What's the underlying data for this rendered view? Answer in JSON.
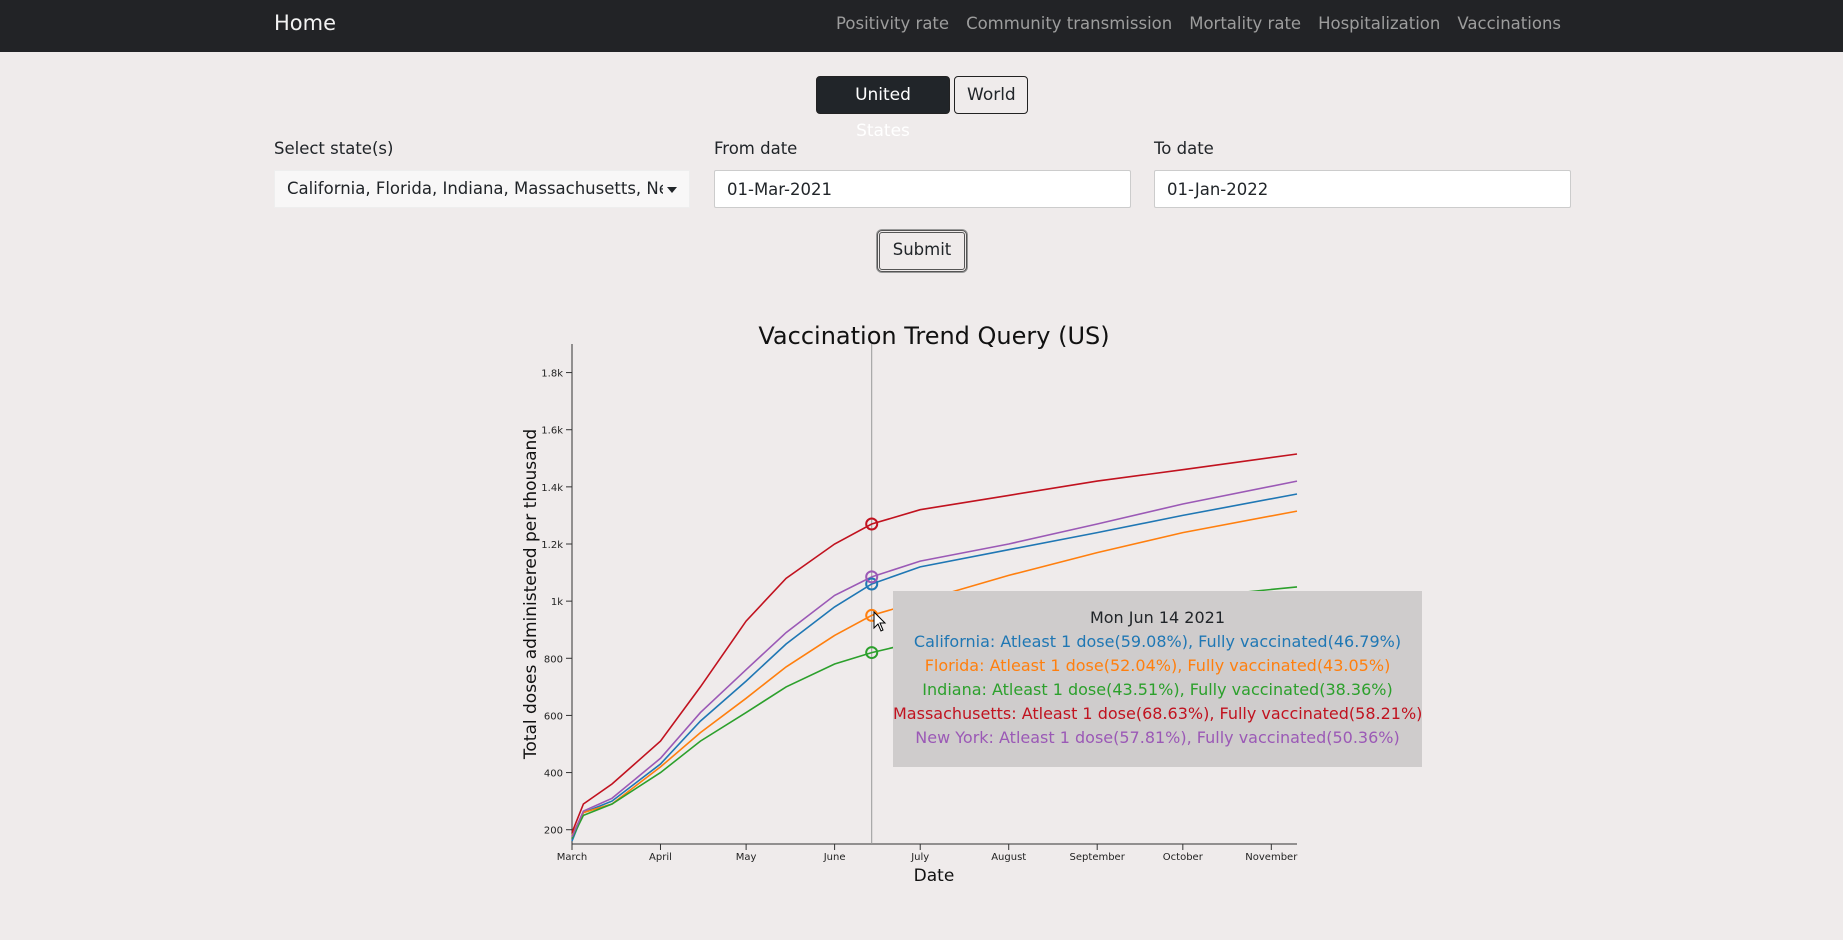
{
  "navbar": {
    "brand": "Home",
    "links": [
      "Positivity rate",
      "Community transmission",
      "Mortality rate",
      "Hospitalization",
      "Vaccinations"
    ]
  },
  "region_toggle": {
    "active": "United States",
    "inactive": "World"
  },
  "form": {
    "state_label": "Select state(s)",
    "state_value": "California, Florida, Indiana, Massachusetts, New York",
    "from_label": "From date",
    "from_value": "01-Mar-2021",
    "to_label": "To date",
    "to_value": "01-Jan-2022",
    "submit_label": "Submit"
  },
  "chart_data": {
    "type": "line",
    "title": "Vaccination Trend Query (US)",
    "xlabel": "Date",
    "ylabel": "Total doses administered per thousand",
    "x_ticks": [
      "March",
      "April",
      "May",
      "June",
      "July",
      "August",
      "September",
      "October",
      "November"
    ],
    "y_ticks": [
      "200",
      "400",
      "600",
      "800",
      "1k",
      "1.2k",
      "1.4k",
      "1.6k",
      "1.8k"
    ],
    "ylim": [
      150,
      1900
    ],
    "xlim": [
      "2021-03-01",
      "2021-11-10"
    ],
    "hover_date": "2021-06-14",
    "series": [
      {
        "name": "California",
        "color": "#1f77b4",
        "x": [
          "2021-03-01",
          "2021-03-05",
          "2021-03-15",
          "2021-04-01",
          "2021-04-15",
          "2021-05-01",
          "2021-05-15",
          "2021-06-01",
          "2021-06-14",
          "2021-07-01",
          "2021-08-01",
          "2021-09-01",
          "2021-10-01",
          "2021-11-10"
        ],
        "y": [
          160,
          260,
          300,
          430,
          580,
          720,
          850,
          980,
          1060,
          1120,
          1180,
          1240,
          1300,
          1375
        ]
      },
      {
        "name": "Florida",
        "color": "#ff7f0e",
        "x": [
          "2021-03-01",
          "2021-03-05",
          "2021-03-15",
          "2021-04-01",
          "2021-04-15",
          "2021-05-01",
          "2021-05-15",
          "2021-06-01",
          "2021-06-14",
          "2021-07-01",
          "2021-08-01",
          "2021-09-01",
          "2021-10-01",
          "2021-11-10"
        ],
        "y": [
          180,
          260,
          290,
          420,
          540,
          660,
          770,
          880,
          950,
          1000,
          1090,
          1170,
          1240,
          1315
        ]
      },
      {
        "name": "Indiana",
        "color": "#2ca02c",
        "x": [
          "2021-03-01",
          "2021-03-05",
          "2021-03-15",
          "2021-04-01",
          "2021-04-15",
          "2021-05-01",
          "2021-05-15",
          "2021-06-01",
          "2021-06-14",
          "2021-07-01",
          "2021-08-01",
          "2021-09-01",
          "2021-10-01",
          "2021-11-10"
        ],
        "y": [
          170,
          250,
          290,
          400,
          510,
          610,
          700,
          780,
          820,
          860,
          920,
          970,
          1010,
          1050
        ]
      },
      {
        "name": "Massachusetts",
        "color": "#c1121f",
        "x": [
          "2021-03-01",
          "2021-03-05",
          "2021-03-15",
          "2021-04-01",
          "2021-04-15",
          "2021-05-01",
          "2021-05-15",
          "2021-06-01",
          "2021-06-14",
          "2021-07-01",
          "2021-08-01",
          "2021-09-01",
          "2021-10-01",
          "2021-11-10"
        ],
        "y": [
          190,
          290,
          360,
          510,
          700,
          930,
          1080,
          1200,
          1270,
          1320,
          1370,
          1420,
          1460,
          1515
        ]
      },
      {
        "name": "New York",
        "color": "#9b59b6",
        "x": [
          "2021-03-01",
          "2021-03-05",
          "2021-03-15",
          "2021-04-01",
          "2021-04-15",
          "2021-05-01",
          "2021-05-15",
          "2021-06-01",
          "2021-06-14",
          "2021-07-01",
          "2021-08-01",
          "2021-09-01",
          "2021-10-01",
          "2021-11-10"
        ],
        "y": [
          175,
          265,
          310,
          450,
          610,
          760,
          890,
          1020,
          1085,
          1140,
          1200,
          1270,
          1340,
          1420
        ]
      }
    ]
  },
  "tooltip": {
    "date": "Mon Jun 14 2021",
    "lines": [
      {
        "text": "California: Atleast 1 dose(59.08%), Fully vaccinated(46.79%)",
        "color": "#1f77b4"
      },
      {
        "text": "Florida: Atleast 1 dose(52.04%), Fully vaccinated(43.05%)",
        "color": "#ff7f0e"
      },
      {
        "text": "Indiana: Atleast 1 dose(43.51%), Fully vaccinated(38.36%)",
        "color": "#2ca02c"
      },
      {
        "text": "Massachusetts: Atleast 1 dose(68.63%), Fully vaccinated(58.21%)",
        "color": "#c1121f"
      },
      {
        "text": "New York: Atleast 1 dose(57.81%), Fully vaccinated(50.36%)",
        "color": "#9b59b6"
      }
    ]
  }
}
